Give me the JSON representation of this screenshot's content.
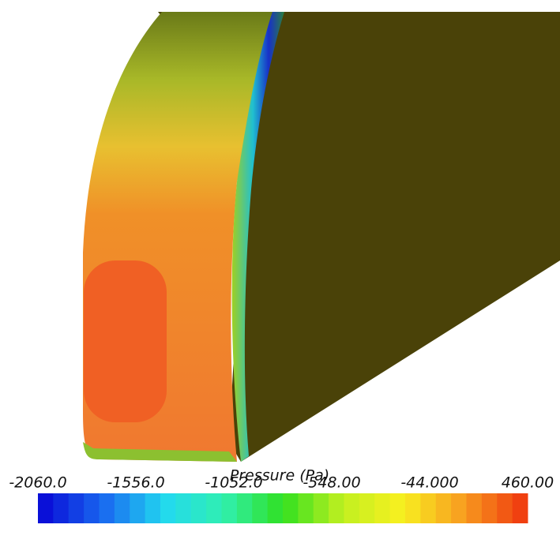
{
  "chart_data": {
    "type": "colorbar",
    "title": "Pressure (Pa)",
    "xlim": [
      -2060,
      460
    ],
    "xticks": [
      {
        "value": -2060,
        "label": "-2060.0"
      },
      {
        "value": -1556,
        "label": "-1556.0"
      },
      {
        "value": -1052,
        "label": "-1052.0"
      },
      {
        "value": -548,
        "label": "-548.00"
      },
      {
        "value": -44,
        "label": "-44.000"
      },
      {
        "value": 460,
        "label": "460.00"
      }
    ],
    "colors": [
      "#0a10d8",
      "#1a6cf0",
      "#22d8f0",
      "#30f0b0",
      "#30e020",
      "#c0f020",
      "#f8f020",
      "#f8a020",
      "#f04010"
    ]
  }
}
